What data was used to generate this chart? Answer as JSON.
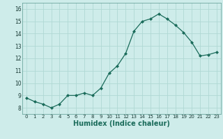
{
  "x": [
    0,
    1,
    2,
    3,
    4,
    5,
    6,
    7,
    8,
    9,
    10,
    11,
    12,
    13,
    14,
    15,
    16,
    17,
    18,
    19,
    20,
    21,
    22,
    23
  ],
  "y": [
    8.8,
    8.5,
    8.3,
    8.0,
    8.3,
    9.0,
    9.0,
    9.2,
    9.0,
    9.6,
    10.8,
    11.4,
    12.4,
    14.2,
    15.0,
    15.2,
    15.6,
    15.2,
    14.7,
    14.1,
    13.3,
    12.2,
    12.3,
    12.5
  ],
  "line_color": "#1a6b5a",
  "marker_color": "#1a6b5a",
  "bg_color": "#ceecea",
  "grid_color": "#b0d8d4",
  "xlabel": "Humidex (Indice chaleur)",
  "xlabel_fontsize": 7,
  "ylim": [
    7.5,
    16.5
  ],
  "xlim": [
    -0.5,
    23.5
  ],
  "yticks": [
    8,
    9,
    10,
    11,
    12,
    13,
    14,
    15,
    16
  ],
  "xticks": [
    0,
    1,
    2,
    3,
    4,
    5,
    6,
    7,
    8,
    9,
    10,
    11,
    12,
    13,
    14,
    15,
    16,
    17,
    18,
    19,
    20,
    21,
    22,
    23
  ],
  "tick_fontsize": 5,
  "ytick_fontsize": 5.5
}
